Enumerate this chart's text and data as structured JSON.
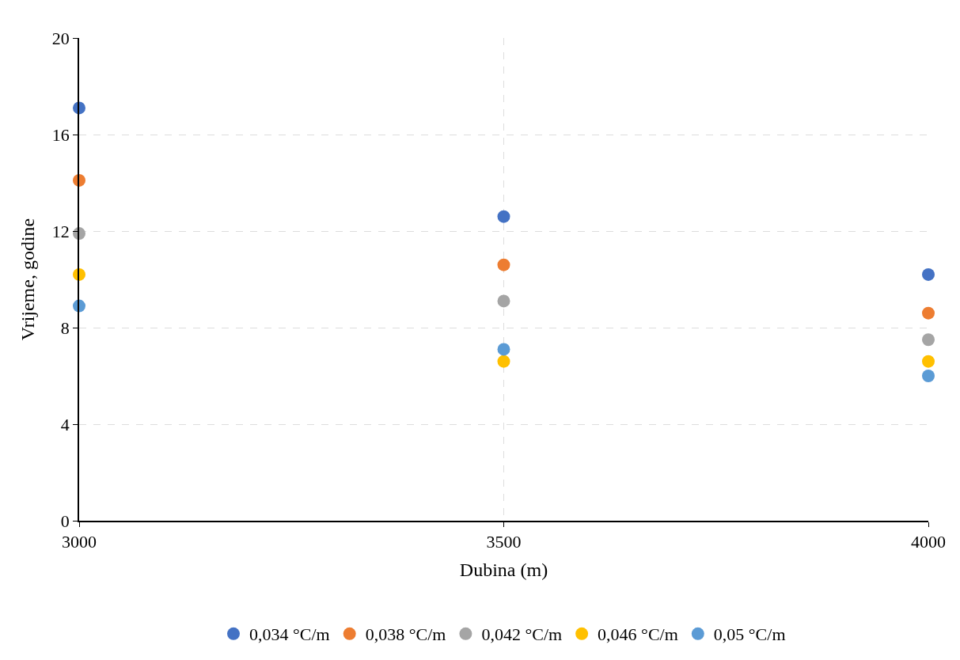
{
  "chart_data": {
    "type": "scatter",
    "xlabel": "Dubina (m)",
    "ylabel": "Vrijeme, godine",
    "x": [
      3000,
      3500,
      4000
    ],
    "series": [
      {
        "name": "0,034 °C/m",
        "color": "#4472c4",
        "values": [
          17.1,
          12.6,
          10.2
        ]
      },
      {
        "name": "0,038 °C/m",
        "color": "#ed7d31",
        "values": [
          14.1,
          10.6,
          8.6
        ]
      },
      {
        "name": "0,042 °C/m",
        "color": "#a5a5a5",
        "values": [
          11.9,
          9.1,
          7.5
        ]
      },
      {
        "name": "0,046 °C/m",
        "color": "#ffc000",
        "values": [
          10.2,
          6.6,
          6.6
        ]
      },
      {
        "name": "0,05 °C/m",
        "color": "#5b9bd5",
        "values": [
          8.9,
          7.1,
          6.0
        ]
      }
    ],
    "xlim": [
      3000,
      4000
    ],
    "xticks": [
      3000,
      3500,
      4000
    ],
    "ylim": [
      0,
      20
    ],
    "yticks": [
      0,
      4,
      8,
      12,
      16,
      20
    ],
    "grid": true,
    "legend": "bottom",
    "marker": "circle"
  }
}
